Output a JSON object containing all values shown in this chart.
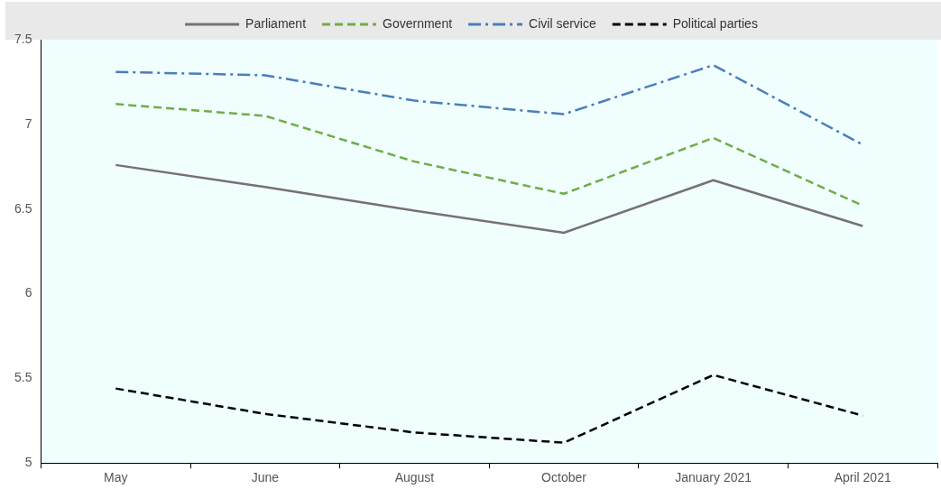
{
  "chart_data": {
    "type": "line",
    "categories": [
      "May",
      "June",
      "August",
      "October",
      "January 2021",
      "April 2021"
    ],
    "series": [
      {
        "name": "Parliament",
        "color": "#767171",
        "line_style": "solid",
        "values": [
          6.76,
          6.63,
          6.49,
          6.36,
          6.67,
          6.4
        ]
      },
      {
        "name": "Government",
        "color": "#70ad47",
        "line_style": "dashed",
        "values": [
          7.12,
          7.05,
          6.78,
          6.59,
          6.92,
          6.52
        ]
      },
      {
        "name": "Civil service",
        "color": "#4a7ebb",
        "line_style": "dashdot",
        "values": [
          7.31,
          7.29,
          7.14,
          7.06,
          7.35,
          6.88
        ]
      },
      {
        "name": "Political parties",
        "color": "#000000",
        "line_style": "dashed",
        "values": [
          5.44,
          5.29,
          5.18,
          5.12,
          5.52,
          5.28
        ]
      }
    ],
    "ylim": [
      5,
      7.5
    ],
    "yticks": [
      5,
      5.5,
      6,
      6.5,
      7,
      7.5
    ],
    "grid": false,
    "legend": "top",
    "marker": "none"
  }
}
